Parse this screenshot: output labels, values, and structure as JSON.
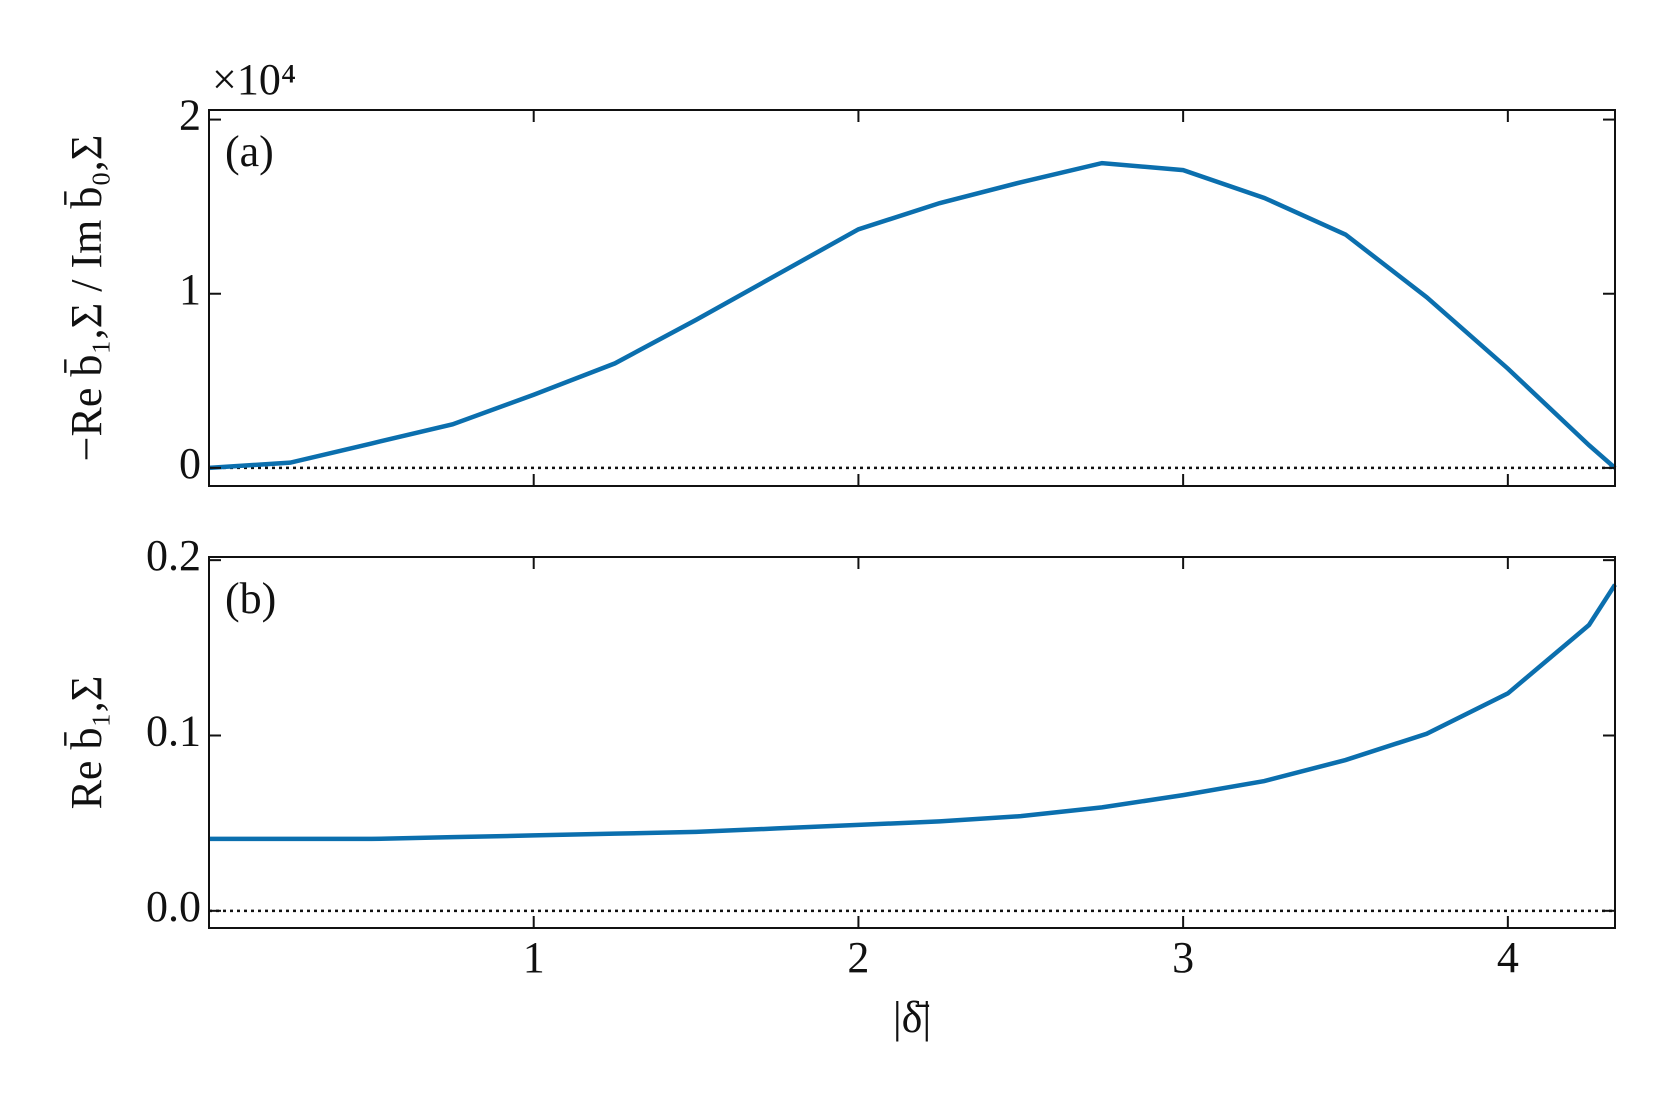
{
  "chart_data": [
    {
      "type": "line",
      "panel_label": "(a)",
      "ylabel": "−Re b̄₁,Σ / Im b̄₀,Σ",
      "offset_label": "×10⁴",
      "x": [
        0,
        0.25,
        0.5,
        0.75,
        1,
        1.25,
        1.5,
        1.75,
        2,
        2.25,
        2.5,
        2.75,
        3,
        3.25,
        3.5,
        3.75,
        4,
        4.25,
        4.33
      ],
      "series": [
        {
          "color": "#0b6fae",
          "values": [
            0,
            0.03,
            0.14,
            0.25,
            0.42,
            0.6,
            0.85,
            1.11,
            1.37,
            1.52,
            1.64,
            1.75,
            1.71,
            1.55,
            1.34,
            0.98,
            0.57,
            0.13,
            0
          ]
        }
      ],
      "xlim": [
        0,
        4.33
      ],
      "ylim": [
        -0.104,
        2.055
      ],
      "yticks": [
        0,
        1,
        2
      ],
      "hline": 0
    },
    {
      "type": "line",
      "panel_label": "(b)",
      "ylabel": "Re b̄₁,Σ",
      "xlabel": "|δ̄|",
      "x": [
        0,
        0.25,
        0.5,
        0.75,
        1,
        1.25,
        1.5,
        1.75,
        2,
        2.25,
        2.5,
        2.75,
        3,
        3.25,
        3.5,
        3.75,
        4,
        4.25,
        4.33
      ],
      "series": [
        {
          "color": "#0b6fae",
          "values": [
            0.041,
            0.041,
            0.041,
            0.042,
            0.043,
            0.044,
            0.045,
            0.047,
            0.049,
            0.051,
            0.054,
            0.059,
            0.066,
            0.074,
            0.086,
            0.101,
            0.124,
            0.163,
            0.186
          ]
        }
      ],
      "xlim": [
        0,
        4.33
      ],
      "ylim": [
        -0.0098,
        0.2018
      ],
      "yticks": [
        {
          "value": 0,
          "label": "0.0"
        },
        0.1,
        0.2
      ],
      "xticks": [
        1,
        2,
        3,
        4
      ],
      "hline": 0
    }
  ]
}
